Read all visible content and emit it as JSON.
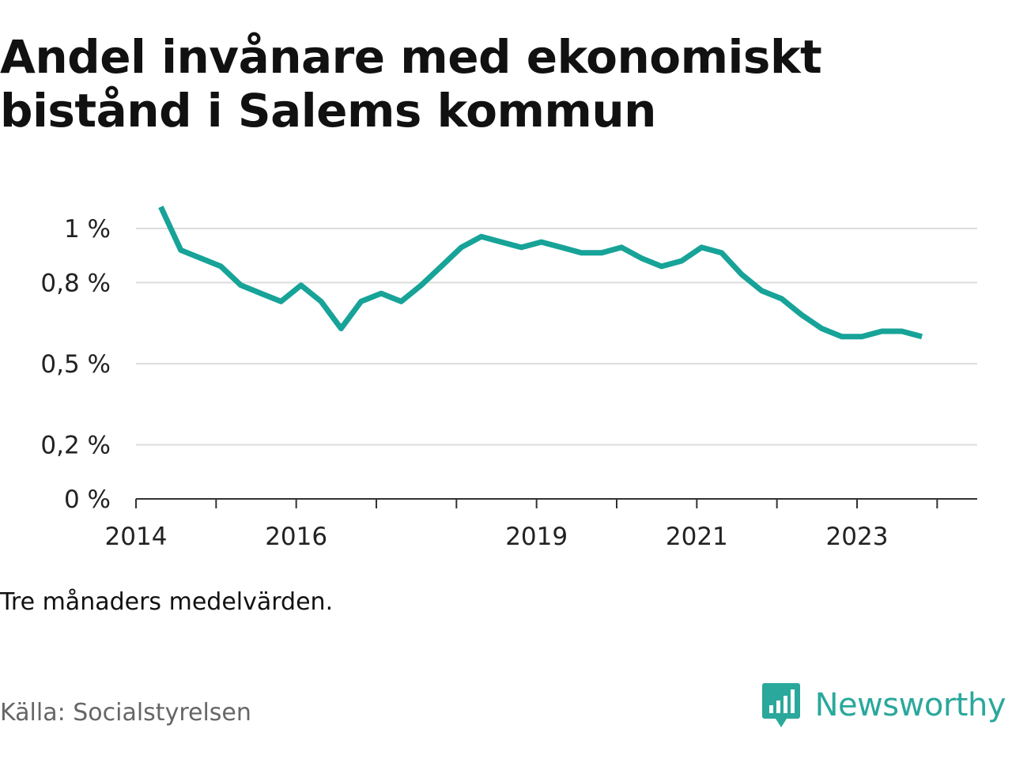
{
  "title": "Andel invånare med ekonomiskt bistånd i Salems kommun",
  "note": "Tre månaders medelvärden.",
  "source": "Källa: Socialstyrelsen",
  "brand": {
    "name": "Newsworthy",
    "icon": "bar-chart-speech-bubble-icon",
    "color": "#2aa89c"
  },
  "colors": {
    "line": "#17a398",
    "grid": "#dddddd",
    "axis": "#333333"
  },
  "chart_data": {
    "type": "line",
    "title": "Andel invånare med ekonomiskt bistånd i Salems kommun",
    "xlabel": "",
    "ylabel": "",
    "grid": true,
    "x_ticks": [
      2014,
      2016,
      2019,
      2021,
      2023
    ],
    "y_ticks": [
      {
        "value": 0,
        "label": "0 %"
      },
      {
        "value": 0.2,
        "label": "0,2 %"
      },
      {
        "value": 0.5,
        "label": "0,5 %"
      },
      {
        "value": 0.8,
        "label": "0,8 %"
      },
      {
        "value": 1.0,
        "label": "1 %"
      }
    ],
    "xlim": [
      2014,
      2024.5
    ],
    "ylim": [
      0,
      1.0
    ],
    "series": [
      {
        "color": "#17a398",
        "x": [
          2014.31,
          2014.56,
          2014.81,
          2015.06,
          2015.31,
          2015.56,
          2015.81,
          2016.06,
          2016.31,
          2016.56,
          2016.81,
          2017.06,
          2017.31,
          2017.56,
          2017.81,
          2018.06,
          2018.31,
          2018.56,
          2018.81,
          2019.06,
          2019.31,
          2019.56,
          2019.81,
          2020.06,
          2020.31,
          2020.56,
          2020.81,
          2021.06,
          2021.31,
          2021.56,
          2021.81,
          2022.06,
          2022.31,
          2022.56,
          2022.81,
          2023.06,
          2023.31,
          2023.56,
          2023.81
        ],
        "values": [
          1.08,
          0.92,
          0.89,
          0.86,
          0.79,
          0.76,
          0.73,
          0.79,
          0.73,
          0.63,
          0.73,
          0.76,
          0.73,
          0.79,
          0.86,
          0.93,
          0.97,
          0.95,
          0.93,
          0.95,
          0.93,
          0.91,
          0.91,
          0.93,
          0.89,
          0.86,
          0.88,
          0.93,
          0.91,
          0.83,
          0.77,
          0.74,
          0.68,
          0.63,
          0.6,
          0.6,
          0.62,
          0.62,
          0.6
        ]
      }
    ]
  }
}
